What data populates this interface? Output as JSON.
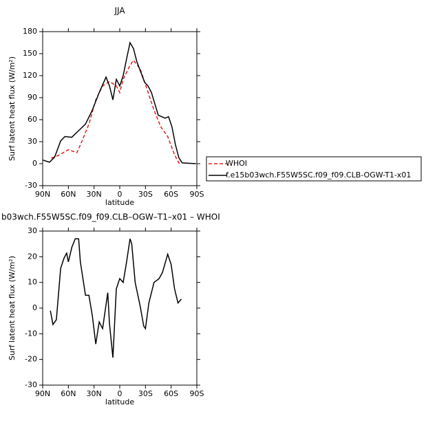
{
  "chart_data": [
    {
      "type": "line",
      "title": "JJA",
      "xlabel": "latitude",
      "ylabel": "Surf latent heat flux (W/m²)",
      "xlim": [
        90,
        -90
      ],
      "ylim": [
        -30,
        180
      ],
      "xticks": [
        {
          "value": 90,
          "label": "90N"
        },
        {
          "value": 60,
          "label": "60N"
        },
        {
          "value": 30,
          "label": "30N"
        },
        0,
        {
          "value": -30,
          "label": "30S"
        },
        {
          "value": -60,
          "label": "60S"
        },
        {
          "value": -90,
          "label": "90S"
        }
      ],
      "yticks": [
        -30,
        0,
        30,
        60,
        90,
        120,
        150,
        180
      ],
      "series": [
        {
          "name": "WHOI",
          "color": "#e41a1c",
          "dash": true,
          "x": [
            80,
            72,
            66,
            60,
            50,
            44,
            36,
            28,
            20,
            12,
            4,
            0,
            -4,
            -12,
            -16,
            -24,
            -32,
            -40,
            -48,
            -56,
            -64,
            -70
          ],
          "values": [
            7.5,
            11,
            15,
            19,
            15,
            31,
            54,
            87,
            106,
            112,
            106,
            97,
            115,
            134,
            141,
            129,
            101,
            73,
            50,
            37,
            12,
            -1
          ]
        },
        {
          "name": "f.e15b03wch.F55W5SC.f09_f09.CLB-OGW-T1-x01",
          "color": "#000000",
          "dash": false,
          "x": [
            90,
            82,
            76,
            69,
            64,
            56,
            48,
            40,
            32,
            24,
            16,
            12,
            8,
            4,
            0,
            -4,
            -8,
            -12,
            -16,
            -20,
            -29,
            -33,
            -37,
            -45,
            -53,
            -57,
            -61,
            -65,
            -69,
            -73,
            -89
          ],
          "values": [
            5,
            2,
            9,
            31,
            37,
            36,
            45,
            54,
            73,
            97,
            118,
            106,
            87,
            115,
            106,
            120,
            143,
            165,
            157,
            139,
            111,
            106,
            97,
            66,
            62,
            64,
            50,
            26,
            8,
            1,
            0
          ]
        }
      ]
    },
    {
      "type": "line",
      "title": "b03wch.F55W5SC.f09_f09.CLB–OGW–T1–x01 – WHOI",
      "xlabel": "latitude",
      "ylabel": "Surf latent heat flux (W/m²)",
      "xlim": [
        90,
        -90
      ],
      "ylim": [
        -30,
        30
      ],
      "xticks": [
        {
          "value": 90,
          "label": "90N"
        },
        {
          "value": 60,
          "label": "60N"
        },
        {
          "value": 30,
          "label": "30N"
        },
        0,
        {
          "value": -30,
          "label": "30S"
        },
        {
          "value": -60,
          "label": "60S"
        },
        {
          "value": -90,
          "label": "90S"
        }
      ],
      "yticks": [
        -30,
        -20,
        -10,
        0,
        10,
        20,
        30
      ],
      "series": [
        {
          "color": "#000000",
          "dash": false,
          "x": [
            81,
            78,
            74,
            69,
            65,
            62,
            60,
            56,
            52,
            48,
            46,
            40,
            36,
            32,
            28,
            24,
            20,
            14,
            12,
            8,
            4,
            0,
            -4,
            -8,
            -12,
            -14,
            -18,
            -24,
            -28,
            -30,
            -34,
            -40,
            -46,
            -50,
            -56,
            -60,
            -64,
            -68,
            -72
          ],
          "values": [
            -1,
            -6.4,
            -4.5,
            15.5,
            19.5,
            21.4,
            18,
            23.6,
            27,
            27,
            18,
            5,
            5,
            -3,
            -14,
            -5.4,
            -8,
            6,
            -6,
            -19.3,
            7.5,
            11.5,
            10,
            18,
            27,
            25,
            10,
            0.5,
            -7,
            -8,
            2,
            10,
            11.5,
            14,
            21,
            17,
            7.5,
            2,
            3.5
          ]
        }
      ]
    }
  ]
}
